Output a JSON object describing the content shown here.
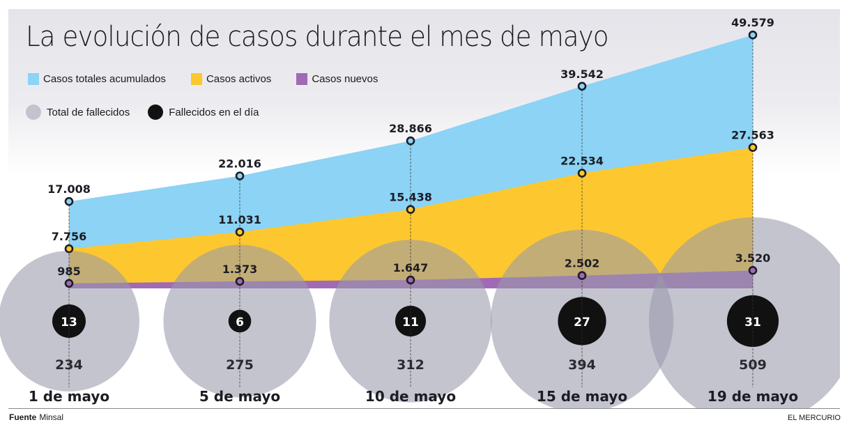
{
  "title": "La evolución de casos durante el mes de mayo",
  "legend": {
    "areas": [
      {
        "label": "Casos totales acumulados",
        "color": "#8cd3f5"
      },
      {
        "label": "Casos activos",
        "color": "#fdc82f"
      },
      {
        "label": "Casos nuevos",
        "color": "#a06ab4"
      }
    ],
    "circles": [
      {
        "label": "Total de fallecidos",
        "color": "#c3c3ce"
      },
      {
        "label": "Fallecidos en el día",
        "color": "#111111"
      }
    ]
  },
  "footer": {
    "source_label": "Fuente",
    "source": "Minsal",
    "brand": "EL MERCURIO"
  },
  "chart_data": {
    "type": "area",
    "title": "La evolución de casos durante el mes de mayo",
    "categories": [
      "1 de mayo",
      "5 de mayo",
      "10 de mayo",
      "15 de mayo",
      "19 de mayo"
    ],
    "series": [
      {
        "name": "Casos totales acumulados",
        "values": [
          17008,
          22016,
          28866,
          39542,
          49579
        ],
        "labels": [
          "17.008",
          "22.016",
          "28.866",
          "39.542",
          "49.579"
        ],
        "color": "#8cd3f5",
        "marker": "#8cd3f5"
      },
      {
        "name": "Casos activos",
        "values": [
          7756,
          11031,
          15438,
          22534,
          27563
        ],
        "labels": [
          "7.756",
          "11.031",
          "15.438",
          "22.534",
          "27.563"
        ],
        "color": "#fdc82f",
        "marker": "#fdc82f"
      },
      {
        "name": "Casos nuevos",
        "values": [
          985,
          1373,
          1647,
          2502,
          3520
        ],
        "labels": [
          "985",
          "1.373",
          "1.647",
          "2.502",
          "3.520"
        ],
        "color": "#a06ab4",
        "marker": "#a06ab4"
      }
    ],
    "bubbles": [
      {
        "name": "Total de fallecidos",
        "values": [
          234,
          275,
          312,
          394,
          509
        ],
        "color": "#c3c3ce"
      },
      {
        "name": "Fallecidos en el día",
        "values": [
          13,
          6,
          11,
          27,
          31
        ],
        "color": "#111111"
      }
    ],
    "xlabel": "",
    "ylabel": "",
    "ylim": [
      0,
      52000
    ],
    "grid": false,
    "legend": "top-left"
  }
}
